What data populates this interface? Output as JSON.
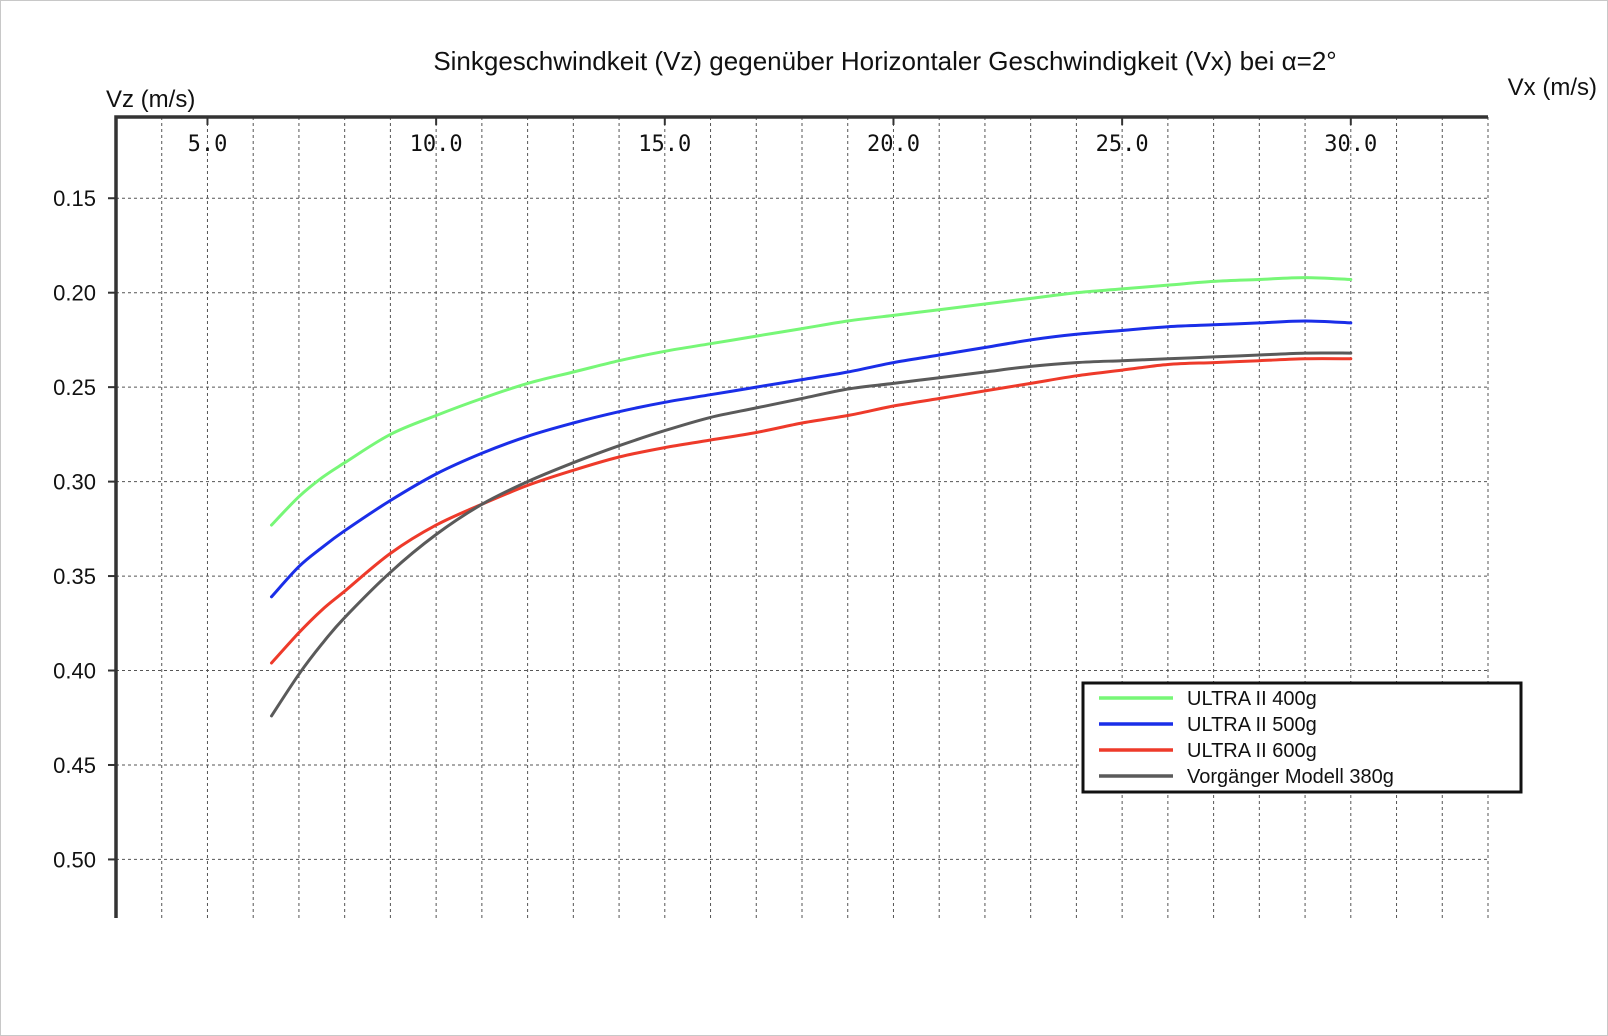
{
  "chart_data": {
    "type": "line",
    "title": "Sinkgeschwindkeit (Vz) gegenüber Horizontaler Geschwindigkeit (Vx) bei α=2°",
    "xlabel": "Vx (m/s)",
    "ylabel": "Vz (m/s)",
    "xlim": [
      3.0,
      33.0
    ],
    "ylim": [
      0.107,
      0.531
    ],
    "y_inverted": true,
    "x_ticks": [
      5.0,
      10.0,
      15.0,
      20.0,
      25.0,
      30.0
    ],
    "x_tick_labels": [
      "5.0",
      "10.0",
      "15.0",
      "20.0",
      "25.0",
      "30.0"
    ],
    "y_ticks": [
      0.15,
      0.2,
      0.25,
      0.3,
      0.35,
      0.4,
      0.45,
      0.5
    ],
    "y_tick_labels": [
      "0.15",
      "0.20",
      "0.25",
      "0.30",
      "0.35",
      "0.40",
      "0.45",
      "0.50"
    ],
    "grid": true,
    "legend_position": "lower-right",
    "series": [
      {
        "name": "ULTRA II 400g",
        "color": "#77f777",
        "x": [
          6.4,
          7.0,
          7.5,
          8.0,
          9.0,
          10.0,
          11.0,
          12.0,
          13.0,
          14.0,
          15.0,
          16.0,
          17.0,
          18.0,
          19.0,
          20.0,
          21.0,
          22.0,
          23.0,
          24.0,
          25.0,
          26.0,
          27.0,
          28.0,
          29.0,
          30.0
        ],
        "y": [
          0.323,
          0.308,
          0.298,
          0.29,
          0.275,
          0.265,
          0.256,
          0.248,
          0.242,
          0.236,
          0.231,
          0.227,
          0.223,
          0.219,
          0.215,
          0.212,
          0.209,
          0.206,
          0.203,
          0.2,
          0.198,
          0.196,
          0.194,
          0.193,
          0.192,
          0.193
        ]
      },
      {
        "name": "ULTRA II 500g",
        "color": "#1a2ee8",
        "x": [
          6.4,
          7.0,
          7.5,
          8.0,
          9.0,
          10.0,
          11.0,
          12.0,
          13.0,
          14.0,
          15.0,
          16.0,
          17.0,
          18.0,
          19.0,
          20.0,
          21.0,
          22.0,
          23.0,
          24.0,
          25.0,
          26.0,
          27.0,
          28.0,
          29.0,
          30.0
        ],
        "y": [
          0.361,
          0.345,
          0.335,
          0.326,
          0.31,
          0.296,
          0.285,
          0.276,
          0.269,
          0.263,
          0.258,
          0.254,
          0.25,
          0.246,
          0.242,
          0.237,
          0.233,
          0.229,
          0.225,
          0.222,
          0.22,
          0.218,
          0.217,
          0.216,
          0.215,
          0.216
        ]
      },
      {
        "name": "ULTRA II 600g",
        "color": "#ee3a2a",
        "x": [
          6.4,
          7.0,
          7.5,
          8.0,
          9.0,
          10.0,
          11.0,
          12.0,
          13.0,
          14.0,
          15.0,
          16.0,
          17.0,
          18.0,
          19.0,
          20.0,
          21.0,
          22.0,
          23.0,
          24.0,
          25.0,
          26.0,
          27.0,
          28.0,
          29.0,
          30.0
        ],
        "y": [
          0.396,
          0.38,
          0.368,
          0.358,
          0.338,
          0.323,
          0.312,
          0.302,
          0.294,
          0.287,
          0.282,
          0.278,
          0.274,
          0.269,
          0.265,
          0.26,
          0.256,
          0.252,
          0.248,
          0.244,
          0.241,
          0.238,
          0.237,
          0.236,
          0.235,
          0.235
        ]
      },
      {
        "name": "Vorgänger Modell 380g",
        "color": "#5a5a5a",
        "x": [
          6.4,
          7.0,
          7.5,
          8.0,
          9.0,
          10.0,
          11.0,
          12.0,
          13.0,
          14.0,
          15.0,
          16.0,
          17.0,
          18.0,
          19.0,
          20.0,
          21.0,
          22.0,
          23.0,
          24.0,
          25.0,
          26.0,
          27.0,
          28.0,
          29.0,
          30.0
        ],
        "y": [
          0.424,
          0.402,
          0.386,
          0.372,
          0.348,
          0.328,
          0.312,
          0.3,
          0.29,
          0.281,
          0.273,
          0.266,
          0.261,
          0.256,
          0.251,
          0.248,
          0.245,
          0.242,
          0.239,
          0.237,
          0.236,
          0.235,
          0.234,
          0.233,
          0.232,
          0.232
        ]
      }
    ]
  }
}
